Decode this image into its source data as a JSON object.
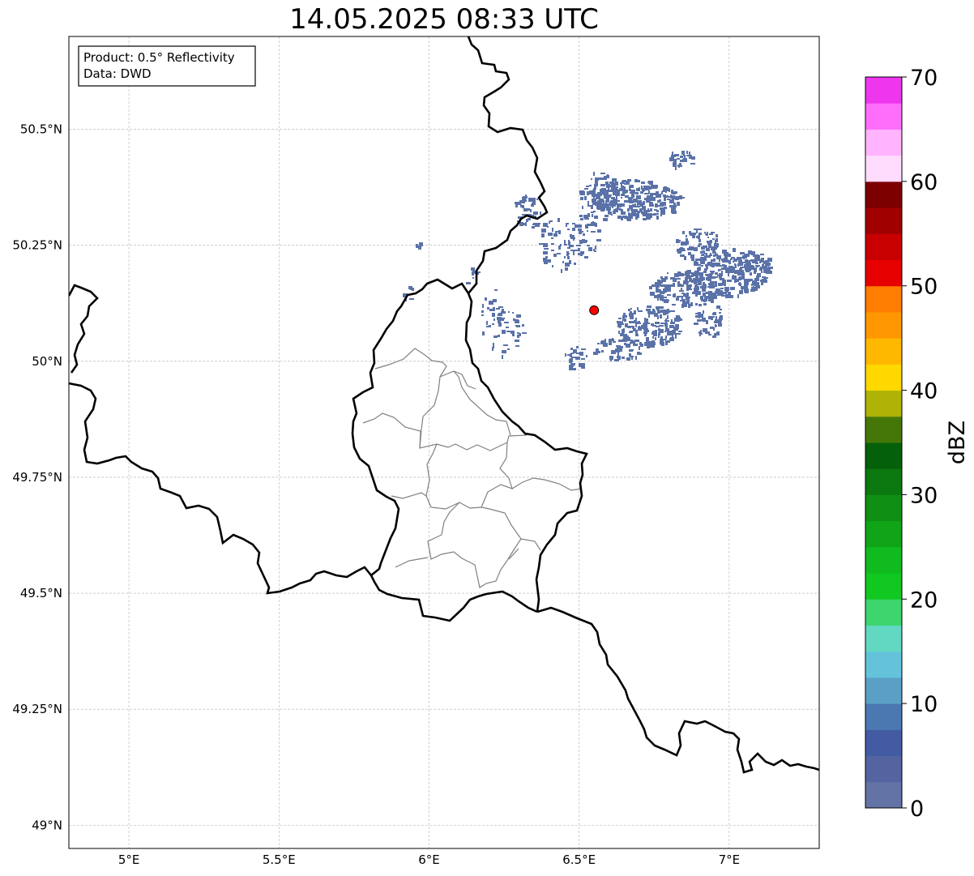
{
  "title": "14.05.2025 08:33 UTC",
  "info": {
    "product": "Product: 0.5° Reflectivity",
    "source": "Data: DWD"
  },
  "map": {
    "lon_range": [
      4.8,
      7.3
    ],
    "lat_range": [
      48.95,
      50.7
    ],
    "lon_ticks": [
      {
        "value": 5.0,
        "label": "5°E"
      },
      {
        "value": 5.5,
        "label": "5.5°E"
      },
      {
        "value": 6.0,
        "label": "6°E"
      },
      {
        "value": 6.5,
        "label": "6.5°E"
      },
      {
        "value": 7.0,
        "label": "7°E"
      }
    ],
    "lat_ticks": [
      {
        "value": 50.5,
        "label": "50.5°N"
      },
      {
        "value": 50.25,
        "label": "50.25°N"
      },
      {
        "value": 50.0,
        "label": "50°N"
      },
      {
        "value": 49.75,
        "label": "49.75°N"
      },
      {
        "value": 49.5,
        "label": "49.5°N"
      },
      {
        "value": 49.25,
        "label": "49.25°N"
      },
      {
        "value": 49.0,
        "label": "49°N"
      }
    ],
    "radar_site": {
      "lon": 6.55,
      "lat": 50.11,
      "color": "#ff0000"
    },
    "echo_color": "#5a72a8",
    "border_color": "#000000",
    "admin_border_color": "#808080",
    "grid": true
  },
  "colorbar": {
    "label": "dBZ",
    "min": 0,
    "max": 70,
    "ticks": [
      {
        "value": 0,
        "label": "0"
      },
      {
        "value": 10,
        "label": "10"
      },
      {
        "value": 20,
        "label": "20"
      },
      {
        "value": 30,
        "label": "30"
      },
      {
        "value": 40,
        "label": "40"
      },
      {
        "value": 50,
        "label": "50"
      },
      {
        "value": 60,
        "label": "60"
      },
      {
        "value": 70,
        "label": "70"
      }
    ],
    "colors": [
      "#6473a6",
      "#5364a0",
      "#435ba3",
      "#4a78b1",
      "#5aa0c6",
      "#64c3db",
      "#62d8c2",
      "#3dd66e",
      "#10c81f",
      "#10bb1f",
      "#10a518",
      "#0f8f14",
      "#0c7810",
      "#05600a",
      "#457708",
      "#aeb306",
      "#ffd800",
      "#ffb800",
      "#ff9800",
      "#ff7d00",
      "#e60000",
      "#c80000",
      "#a00000",
      "#7d0000",
      "#ffdcfe",
      "#ffb4fd",
      "#ff6efa",
      "#ee36ee"
    ]
  }
}
